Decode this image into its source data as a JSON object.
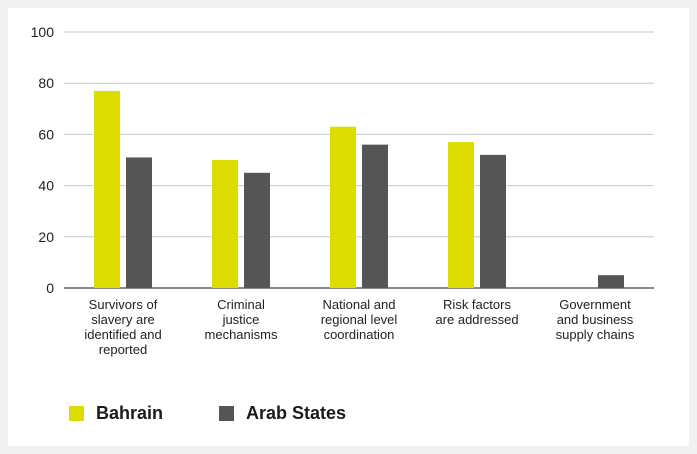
{
  "chart_data": {
    "type": "bar",
    "title": "",
    "xlabel": "",
    "ylabel": "",
    "ylim": [
      0,
      100
    ],
    "yticks": [
      0,
      20,
      40,
      60,
      80,
      100
    ],
    "grid": true,
    "legend_position": "bottom-left",
    "categories": [
      [
        "Survivors of",
        "slavery are",
        "identified and",
        "reported"
      ],
      [
        "Criminal",
        "justice",
        "mechanisms"
      ],
      [
        "National and",
        "regional level",
        "coordination"
      ],
      [
        "Risk factors",
        "are addressed"
      ],
      [
        "Government",
        "and business",
        "supply chains"
      ]
    ],
    "series": [
      {
        "name": "Bahrain",
        "color": "#dcdc00",
        "values": [
          77,
          50,
          63,
          57,
          0
        ]
      },
      {
        "name": "Arab States",
        "color": "#555555",
        "values": [
          51,
          45,
          56,
          52,
          5
        ]
      }
    ]
  }
}
